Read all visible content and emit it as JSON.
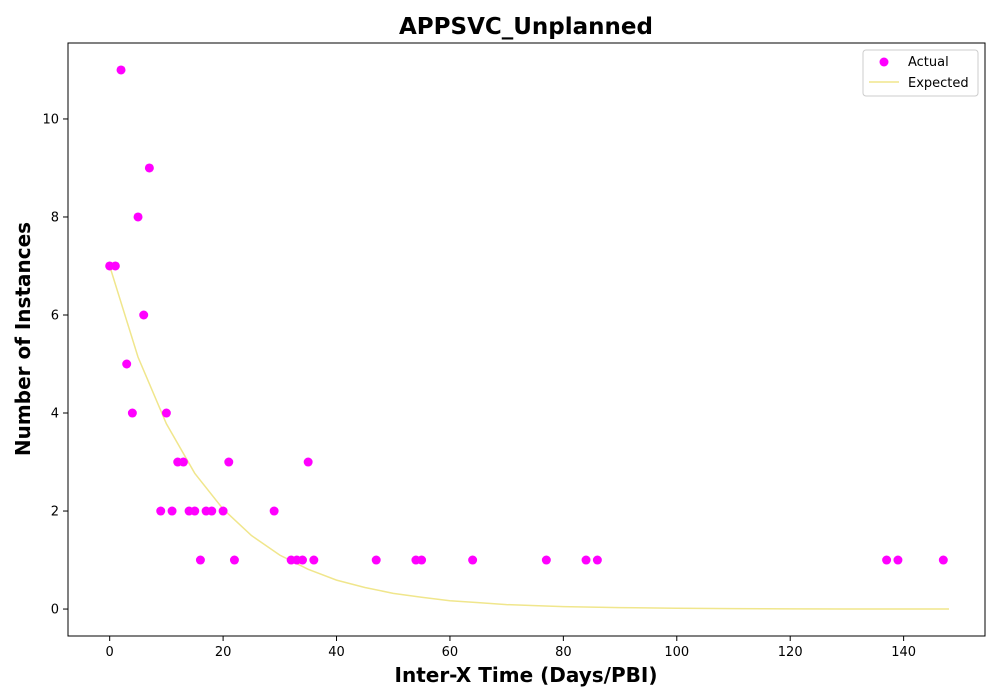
{
  "chart_data": {
    "type": "scatter",
    "title": "APPSVC_Unplanned",
    "xlabel": "Inter-X Time (Days/PBI)",
    "ylabel": "Number of Instances",
    "xlim": [
      -7.35,
      154.35
    ],
    "ylim": [
      -0.55,
      11.55
    ],
    "xticks": [
      0,
      20,
      40,
      60,
      80,
      100,
      120,
      140
    ],
    "yticks": [
      0,
      2,
      4,
      6,
      8,
      10
    ],
    "grid": false,
    "legend_position": "top-right",
    "series": [
      {
        "name": "Actual",
        "kind": "scatter",
        "color": "#ff00ff",
        "points": [
          [
            0,
            7
          ],
          [
            1,
            7
          ],
          [
            2,
            11
          ],
          [
            3,
            5
          ],
          [
            4,
            4
          ],
          [
            5,
            8
          ],
          [
            6,
            6
          ],
          [
            7,
            9
          ],
          [
            9,
            2
          ],
          [
            10,
            4
          ],
          [
            11,
            2
          ],
          [
            12,
            3
          ],
          [
            13,
            3
          ],
          [
            14,
            2
          ],
          [
            15,
            2
          ],
          [
            16,
            1
          ],
          [
            17,
            2
          ],
          [
            18,
            2
          ],
          [
            20,
            2
          ],
          [
            21,
            3
          ],
          [
            22,
            1
          ],
          [
            29,
            2
          ],
          [
            32,
            1
          ],
          [
            33,
            1
          ],
          [
            34,
            1
          ],
          [
            35,
            3
          ],
          [
            36,
            1
          ],
          [
            47,
            1
          ],
          [
            54,
            1
          ],
          [
            55,
            1
          ],
          [
            64,
            1
          ],
          [
            77,
            1
          ],
          [
            84,
            1
          ],
          [
            86,
            1
          ],
          [
            137,
            1
          ],
          [
            139,
            1
          ],
          [
            147,
            1
          ]
        ]
      },
      {
        "name": "Expected",
        "kind": "line",
        "color": "#f0e68c",
        "points": [
          [
            0,
            7.0
          ],
          [
            5,
            5.14
          ],
          [
            10,
            3.78
          ],
          [
            15,
            2.77
          ],
          [
            20,
            2.04
          ],
          [
            25,
            1.5
          ],
          [
            30,
            1.1
          ],
          [
            35,
            0.81
          ],
          [
            40,
            0.59
          ],
          [
            45,
            0.44
          ],
          [
            50,
            0.32
          ],
          [
            55,
            0.24
          ],
          [
            60,
            0.17
          ],
          [
            65,
            0.13
          ],
          [
            70,
            0.09
          ],
          [
            75,
            0.07
          ],
          [
            80,
            0.05
          ],
          [
            90,
            0.03
          ],
          [
            100,
            0.015
          ],
          [
            110,
            0.008
          ],
          [
            120,
            0.004
          ],
          [
            130,
            0.002
          ],
          [
            140,
            0.001
          ],
          [
            148,
            0.0005
          ]
        ]
      }
    ]
  }
}
